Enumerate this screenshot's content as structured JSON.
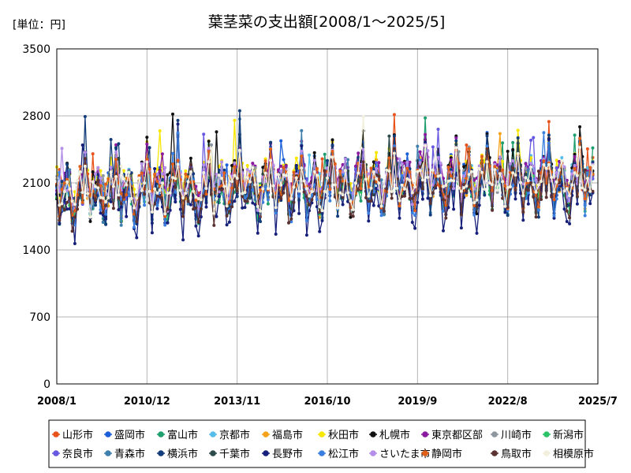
{
  "chart_data": {
    "type": "line",
    "title": "葉茎菜の支出額[2008/1～2025/5]",
    "unit_label": "[単位：円]",
    "xlabel": "",
    "ylabel": "",
    "x_start": "2008-01",
    "x_end": "2025-07",
    "x_ticks": [
      "2008/1",
      "2010/12",
      "2013/11",
      "2016/10",
      "2019/9",
      "2022/8",
      "2025/7"
    ],
    "y_ticks": [
      0,
      700,
      1400,
      2100,
      2800,
      3500
    ],
    "ylim": [
      0,
      3500
    ],
    "grid": true,
    "legend_position": "bottom",
    "months_per_series": 209,
    "series": [
      {
        "name": "山形市",
        "color": "#e8531c",
        "base": 2000,
        "amp": 330
      },
      {
        "name": "盛岡市",
        "color": "#1a5fd8",
        "base": 2030,
        "amp": 350
      },
      {
        "name": "富山市",
        "color": "#1f9e6e",
        "base": 1940,
        "amp": 300
      },
      {
        "name": "京都市",
        "color": "#55bde8",
        "base": 2020,
        "amp": 320
      },
      {
        "name": "福島市",
        "color": "#f5a21a",
        "base": 1980,
        "amp": 330
      },
      {
        "name": "秋田市",
        "color": "#f7e600",
        "base": 2060,
        "amp": 360
      },
      {
        "name": "札幌市",
        "color": "#111111",
        "base": 2040,
        "amp": 400
      },
      {
        "name": "東京都区部",
        "color": "#8a1a9e",
        "base": 2080,
        "amp": 300
      },
      {
        "name": "川崎市",
        "color": "#8e969e",
        "base": 1990,
        "amp": 300
      },
      {
        "name": "新潟市",
        "color": "#2bc26a",
        "base": 1970,
        "amp": 300
      },
      {
        "name": "奈良市",
        "color": "#6658e0",
        "base": 2000,
        "amp": 300
      },
      {
        "name": "青森市",
        "color": "#3f7fae",
        "base": 1960,
        "amp": 330
      },
      {
        "name": "横浜市",
        "color": "#123c7a",
        "base": 2010,
        "amp": 380
      },
      {
        "name": "千葉市",
        "color": "#2c4a4a",
        "base": 2000,
        "amp": 310
      },
      {
        "name": "長野市",
        "color": "#16207a",
        "base": 1880,
        "amp": 420
      },
      {
        "name": "松江市",
        "color": "#3a7fe0",
        "base": 1950,
        "amp": 330
      },
      {
        "name": "さいたま市",
        "color": "#b48ee8",
        "base": 2050,
        "amp": 300
      },
      {
        "name": "静岡市",
        "color": "#e0601a",
        "base": 2020,
        "amp": 320
      },
      {
        "name": "鳥取市",
        "color": "#5a3232",
        "base": 1920,
        "amp": 320
      },
      {
        "name": "相模原市",
        "color": "#f2f0dc",
        "base": 2000,
        "amp": 280
      }
    ]
  }
}
